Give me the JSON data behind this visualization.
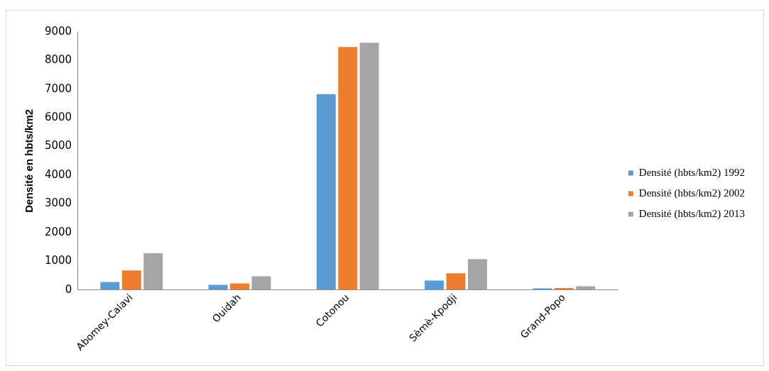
{
  "chart_data": {
    "type": "bar",
    "ylabel": "Densité en hbts/km2",
    "categories": [
      "Abomey-Calavi",
      "Ouidah",
      "Cotonou",
      "Sèmè-Kpodji",
      "Grand-Popo"
    ],
    "series": [
      {
        "name": "Densité (hbts/km2) 1992",
        "color": "#5b9bd5",
        "values": [
          300,
          200,
          6850,
          350,
          80
        ]
      },
      {
        "name": "Densité (hbts/km2) 2002",
        "color": "#ed7d31",
        "values": [
          700,
          250,
          8500,
          600,
          90
        ]
      },
      {
        "name": "Densité (hbts/km2) 2013",
        "color": "#a5a5a5",
        "values": [
          1300,
          500,
          8650,
          1100,
          150
        ]
      }
    ],
    "ylim": [
      0,
      9000
    ],
    "yticks": [
      0,
      1000,
      2000,
      3000,
      4000,
      5000,
      6000,
      7000,
      8000,
      9000
    ],
    "grid": false,
    "legend": "right"
  }
}
